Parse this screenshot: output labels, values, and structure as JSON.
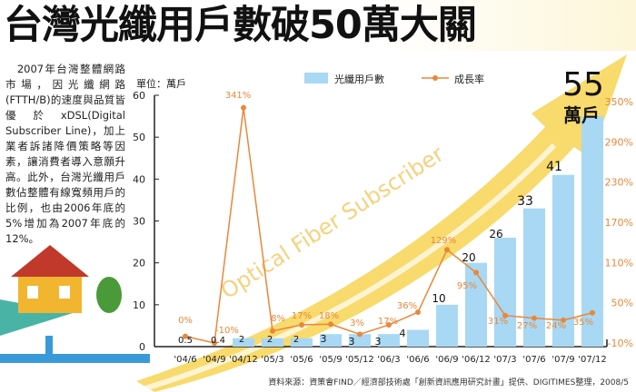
{
  "title": "台灣光纖用戶數破50萬大關",
  "description": "　2007年台灣整體網路市場，因光纖網路(FTTH/B)的速度與品質皆優於xDSL(Digital Subscriber Line)，加上業者訴諸降價策略等因素，讓消費者導入意願升高。此外，台灣光纖用戶數佔整體有線寬頻用戶的比例，也由2006年底的5%增加為2007年底的12%。",
  "source": "資料來源：資策會FIND／經濟部技術處「創新資訊應用研究計畫」提供、DIGITIMES整理，2008/5",
  "highlight": {
    "value": "55",
    "unit": "萬戶"
  },
  "watermark": "Optical Fiber Subscriber",
  "chart_data": {
    "type": "bar+line",
    "ylabel": "單位：萬戶",
    "categories": [
      "'04/6",
      "'04/9",
      "'04/12",
      "'05/3",
      "'05/6",
      "'05/9",
      "'05/12",
      "'06/3",
      "'06/6",
      "'06/9",
      "'06/12",
      "'07/3",
      "'07/6",
      "'07/9",
      "'07/12"
    ],
    "series": [
      {
        "name": "光纖用戶數",
        "type": "bar",
        "axis": "left",
        "values": [
          0.5,
          0.4,
          2,
          2,
          2,
          3,
          3,
          3,
          4,
          10,
          20,
          26,
          33,
          41,
          55
        ],
        "labels": [
          "0.5",
          "0.4",
          "2",
          "2",
          "2",
          "3",
          "3",
          "3",
          "4",
          "10",
          "20",
          "26",
          "33",
          "41",
          "55"
        ]
      },
      {
        "name": "成長率",
        "type": "line",
        "axis": "right",
        "values": [
          0,
          -10,
          341,
          8,
          17,
          18,
          3,
          17,
          36,
          129,
          95,
          31,
          27,
          24,
          35
        ],
        "labels": [
          "0%",
          "-10%",
          "341%",
          "8%",
          "17%",
          "18%",
          "3%",
          "17%",
          "36%",
          "129%",
          "95%",
          "31%",
          "27%",
          "24%",
          "35%"
        ]
      }
    ],
    "left_axis": {
      "range": [
        0,
        60
      ],
      "ticks": [
        "0",
        "10",
        "20",
        "30",
        "40",
        "50",
        "60"
      ]
    },
    "right_axis": {
      "range": [
        -10,
        350
      ],
      "ticks": [
        "-10%",
        "50%",
        "110%",
        "170%",
        "230%",
        "290%",
        "350%"
      ]
    },
    "colors": {
      "bar": "#a8d8f4",
      "line": "#e8883a",
      "arrow": "#f7d454"
    }
  }
}
